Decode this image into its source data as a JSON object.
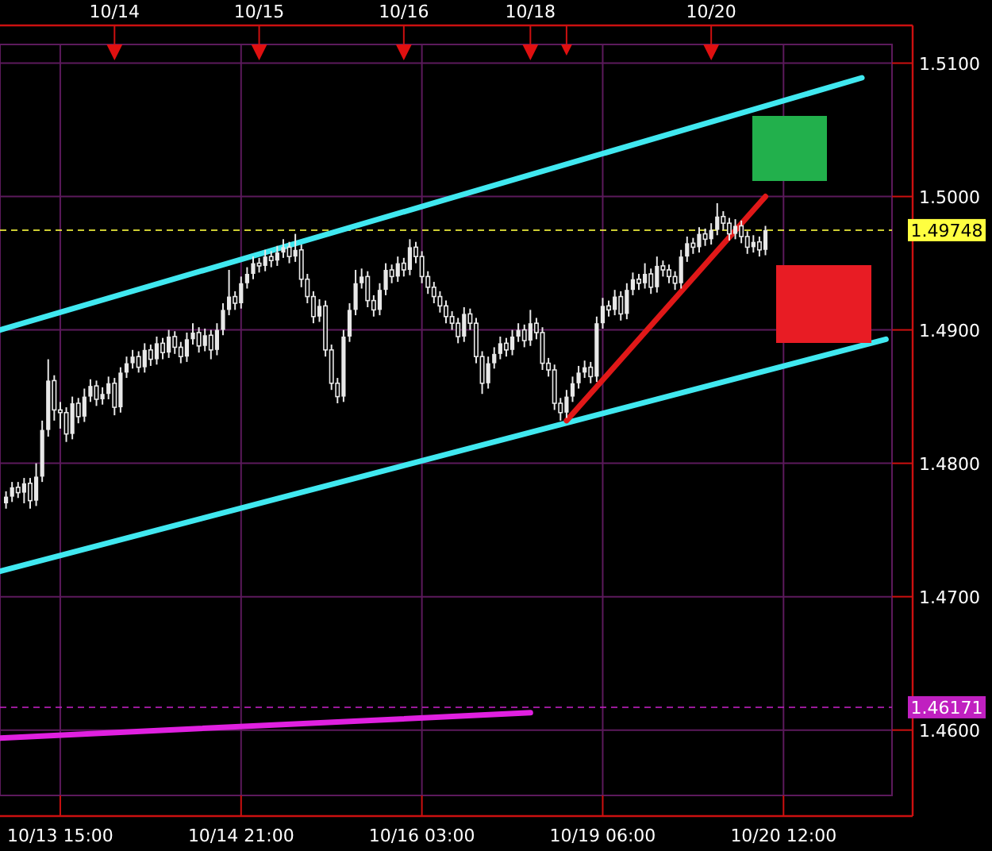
{
  "chart_data": {
    "type": "candlestick",
    "color": "#e8e8e8",
    "grid": true,
    "ylim": [
      1.4551,
      1.5114
    ],
    "yticks": [
      {
        "value": 1.46,
        "label": "1.4600"
      },
      {
        "value": 1.47,
        "label": "1.4700"
      },
      {
        "value": 1.48,
        "label": "1.4800"
      },
      {
        "value": 1.49,
        "label": "1.4900"
      },
      {
        "value": 1.5,
        "label": "1.5000"
      },
      {
        "value": 1.51,
        "label": "1.5100"
      }
    ],
    "annotations": [
      "10/14",
      "10/15",
      "10/16",
      "10/18",
      "10/20"
    ],
    "categories": [
      null,
      null,
      null,
      null,
      null,
      null,
      null,
      null,
      null,
      null,
      "10/13 15:00",
      null,
      null,
      null,
      null,
      null,
      null,
      null,
      null,
      null,
      null,
      null,
      null,
      null,
      null,
      null,
      null,
      null,
      null,
      null,
      null,
      null,
      null,
      null,
      null,
      null,
      null,
      null,
      null,
      null,
      "10/14 21:00",
      null,
      null,
      null,
      null,
      null,
      null,
      null,
      null,
      null,
      null,
      null,
      null,
      null,
      null,
      null,
      null,
      null,
      null,
      null,
      null,
      null,
      null,
      null,
      null,
      null,
      null,
      null,
      null,
      null,
      "10/16 03:00",
      null,
      null,
      null,
      null,
      null,
      null,
      null,
      null,
      null,
      null,
      null,
      null,
      null,
      null,
      null,
      null,
      null,
      null,
      null,
      null,
      null,
      null,
      null,
      null,
      null,
      null,
      null,
      null,
      null,
      "10/19 06:00",
      null,
      null,
      null,
      null,
      null,
      null,
      null,
      null,
      null,
      null,
      null,
      null,
      null,
      null,
      null,
      null,
      null,
      null,
      null,
      null,
      null,
      null,
      null,
      null,
      null,
      null,
      null,
      null,
      null,
      "10/20 12:00",
      null,
      null,
      null,
      null,
      null,
      null,
      null,
      null,
      null,
      null,
      null,
      null,
      null,
      null,
      null,
      null,
      null
    ],
    "ohlc": [
      null,
      [
        1.477,
        1.4779,
        1.4766,
        1.4775
      ],
      [
        1.4775,
        1.4786,
        1.4771,
        1.4782
      ],
      [
        1.4782,
        1.4786,
        1.4774,
        1.4778
      ],
      [
        1.4778,
        1.4789,
        1.477,
        1.4785
      ],
      [
        1.4785,
        1.4789,
        1.4766,
        1.4772
      ],
      [
        1.4772,
        1.48,
        1.4768,
        1.479
      ],
      [
        1.479,
        1.4832,
        1.4786,
        1.4825
      ],
      [
        1.4825,
        1.4878,
        1.482,
        1.4862
      ],
      [
        1.4862,
        1.4866,
        1.4832,
        1.484
      ],
      [
        1.484,
        1.4846,
        1.4826,
        1.4838
      ],
      [
        1.4838,
        1.4842,
        1.4816,
        1.4822
      ],
      [
        1.4822,
        1.485,
        1.4818,
        1.4845
      ],
      [
        1.4845,
        1.4849,
        1.483,
        1.4835
      ],
      [
        1.4835,
        1.4856,
        1.4831,
        1.485
      ],
      [
        1.485,
        1.4863,
        1.4846,
        1.4858
      ],
      [
        1.4858,
        1.4862,
        1.4843,
        1.4848
      ],
      [
        1.4848,
        1.4857,
        1.4844,
        1.4852
      ],
      [
        1.4852,
        1.4865,
        1.4848,
        1.486
      ],
      [
        1.486,
        1.4864,
        1.4836,
        1.4842
      ],
      [
        1.4842,
        1.4872,
        1.4838,
        1.4868
      ],
      [
        1.4868,
        1.488,
        1.4864,
        1.4875
      ],
      [
        1.4875,
        1.4885,
        1.4871,
        1.488
      ],
      [
        1.488,
        1.4884,
        1.4868,
        1.4872
      ],
      [
        1.4872,
        1.489,
        1.4868,
        1.4885
      ],
      [
        1.4885,
        1.4889,
        1.4873,
        1.4878
      ],
      [
        1.4878,
        1.4895,
        1.4874,
        1.489
      ],
      [
        1.489,
        1.4894,
        1.4878,
        1.4883
      ],
      [
        1.4883,
        1.49,
        1.4879,
        1.4895
      ],
      [
        1.4895,
        1.4899,
        1.4882,
        1.4887
      ],
      [
        1.4887,
        1.4891,
        1.4875,
        1.488
      ],
      [
        1.488,
        1.4898,
        1.4876,
        1.4893
      ],
      [
        1.4893,
        1.4905,
        1.4889,
        1.4898
      ],
      [
        1.4898,
        1.4902,
        1.4883,
        1.4888
      ],
      [
        1.4888,
        1.4901,
        1.4884,
        1.4896
      ],
      [
        1.4896,
        1.49,
        1.4878,
        1.4885
      ],
      [
        1.4885,
        1.4905,
        1.4881,
        1.49
      ],
      [
        1.49,
        1.492,
        1.4896,
        1.4915
      ],
      [
        1.4915,
        1.4945,
        1.4911,
        1.4925
      ],
      [
        1.4925,
        1.4929,
        1.4915,
        1.492
      ],
      [
        1.492,
        1.494,
        1.4916,
        1.4935
      ],
      [
        1.4935,
        1.4947,
        1.4931,
        1.4942
      ],
      [
        1.4942,
        1.4955,
        1.4938,
        1.495
      ],
      [
        1.495,
        1.4954,
        1.4943,
        1.4948
      ],
      [
        1.4948,
        1.496,
        1.4944,
        1.4955
      ],
      [
        1.4955,
        1.4959,
        1.4947,
        1.4952
      ],
      [
        1.4952,
        1.4963,
        1.4948,
        1.4958
      ],
      [
        1.4958,
        1.4968,
        1.4954,
        1.4962
      ],
      [
        1.4962,
        1.4966,
        1.495,
        1.4955
      ],
      [
        1.4955,
        1.4972,
        1.4951,
        1.496
      ],
      [
        1.496,
        1.4964,
        1.4932,
        1.4938
      ],
      [
        1.4938,
        1.4942,
        1.492,
        1.4925
      ],
      [
        1.4925,
        1.4929,
        1.4905,
        1.491
      ],
      [
        1.491,
        1.4923,
        1.4906,
        1.4918
      ],
      [
        1.4918,
        1.4922,
        1.488,
        1.4885
      ],
      [
        1.4885,
        1.4889,
        1.4855,
        1.486
      ],
      [
        1.486,
        1.4864,
        1.4845,
        1.485
      ],
      [
        1.485,
        1.49,
        1.4846,
        1.4895
      ],
      [
        1.4895,
        1.492,
        1.4891,
        1.4915
      ],
      [
        1.4915,
        1.4945,
        1.4911,
        1.4935
      ],
      [
        1.4935,
        1.4946,
        1.4931,
        1.494
      ],
      [
        1.494,
        1.4944,
        1.4917,
        1.4922
      ],
      [
        1.4922,
        1.4926,
        1.491,
        1.4915
      ],
      [
        1.4915,
        1.4935,
        1.4911,
        1.493
      ],
      [
        1.493,
        1.495,
        1.4926,
        1.4945
      ],
      [
        1.4945,
        1.4949,
        1.4935,
        1.494
      ],
      [
        1.494,
        1.4955,
        1.4936,
        1.495
      ],
      [
        1.495,
        1.4954,
        1.494,
        1.4945
      ],
      [
        1.4945,
        1.4968,
        1.4941,
        1.4962
      ],
      [
        1.4962,
        1.4966,
        1.495,
        1.4955
      ],
      [
        1.4955,
        1.4959,
        1.4935,
        1.494
      ],
      [
        1.494,
        1.4944,
        1.4927,
        1.4932
      ],
      [
        1.4932,
        1.4936,
        1.492,
        1.4925
      ],
      [
        1.4925,
        1.4929,
        1.4913,
        1.4918
      ],
      [
        1.4918,
        1.4922,
        1.4905,
        1.491
      ],
      [
        1.491,
        1.4914,
        1.49,
        1.4905
      ],
      [
        1.4905,
        1.4909,
        1.489,
        1.4895
      ],
      [
        1.4895,
        1.4917,
        1.4891,
        1.4912
      ],
      [
        1.4912,
        1.4916,
        1.49,
        1.4905
      ],
      [
        1.4905,
        1.4909,
        1.4875,
        1.488
      ],
      [
        1.488,
        1.4884,
        1.4852,
        1.486
      ],
      [
        1.486,
        1.488,
        1.4856,
        1.4875
      ],
      [
        1.4875,
        1.4887,
        1.4871,
        1.4882
      ],
      [
        1.4882,
        1.4895,
        1.4878,
        1.489
      ],
      [
        1.489,
        1.4894,
        1.488,
        1.4885
      ],
      [
        1.4885,
        1.49,
        1.4881,
        1.4895
      ],
      [
        1.4895,
        1.4905,
        1.4891,
        1.49
      ],
      [
        1.49,
        1.4904,
        1.4887,
        1.4892
      ],
      [
        1.4892,
        1.4915,
        1.4888,
        1.4905
      ],
      [
        1.4905,
        1.4909,
        1.4893,
        1.4898
      ],
      [
        1.4898,
        1.4902,
        1.487,
        1.4875
      ],
      [
        1.4875,
        1.4879,
        1.4865,
        1.487
      ],
      [
        1.487,
        1.4874,
        1.484,
        1.4845
      ],
      [
        1.4845,
        1.4849,
        1.4832,
        1.4838
      ],
      [
        1.4838,
        1.4855,
        1.4834,
        1.485
      ],
      [
        1.485,
        1.4865,
        1.4846,
        1.486
      ],
      [
        1.486,
        1.4873,
        1.4856,
        1.4868
      ],
      [
        1.4868,
        1.4877,
        1.4864,
        1.4872
      ],
      [
        1.4872,
        1.4876,
        1.486,
        1.4865
      ],
      [
        1.4865,
        1.491,
        1.4861,
        1.4905
      ],
      [
        1.4905,
        1.4924,
        1.4901,
        1.4918
      ],
      [
        1.4918,
        1.4922,
        1.491,
        1.4915
      ],
      [
        1.4915,
        1.493,
        1.4911,
        1.4925
      ],
      [
        1.4925,
        1.4929,
        1.4907,
        1.4912
      ],
      [
        1.4912,
        1.4935,
        1.4908,
        1.493
      ],
      [
        1.493,
        1.4943,
        1.4926,
        1.4938
      ],
      [
        1.4938,
        1.4942,
        1.493,
        1.4935
      ],
      [
        1.4935,
        1.495,
        1.4931,
        1.4942
      ],
      [
        1.4942,
        1.4946,
        1.4927,
        1.4932
      ],
      [
        1.4932,
        1.4955,
        1.4928,
        1.4948
      ],
      [
        1.4948,
        1.4952,
        1.494,
        1.4945
      ],
      [
        1.4945,
        1.4949,
        1.4935,
        1.494
      ],
      [
        1.494,
        1.4944,
        1.493,
        1.4935
      ],
      [
        1.4935,
        1.496,
        1.4931,
        1.4955
      ],
      [
        1.4955,
        1.497,
        1.4951,
        1.4965
      ],
      [
        1.4965,
        1.4969,
        1.4957,
        1.4962
      ],
      [
        1.4962,
        1.4977,
        1.4958,
        1.4972
      ],
      [
        1.4972,
        1.4976,
        1.4963,
        1.4968
      ],
      [
        1.4968,
        1.498,
        1.4964,
        1.4975
      ],
      [
        1.4975,
        1.4995,
        1.4971,
        1.4985
      ],
      [
        1.4985,
        1.4989,
        1.4975,
        1.498
      ],
      [
        1.498,
        1.4984,
        1.4967,
        1.4972
      ],
      [
        1.4972,
        1.4983,
        1.4968,
        1.4978
      ],
      [
        1.4978,
        1.4982,
        1.4965,
        1.497
      ],
      [
        1.497,
        1.4974,
        1.4957,
        1.4962
      ],
      [
        1.4962,
        1.4971,
        1.4958,
        1.4966
      ],
      [
        1.4966,
        1.497,
        1.4955,
        1.496
      ],
      [
        1.496,
        1.4978,
        1.4956,
        1.49748
      ],
      null,
      null,
      null,
      null,
      null,
      null,
      null,
      null,
      null,
      null,
      null,
      null,
      null,
      null,
      null,
      null,
      null,
      null,
      null,
      null
    ],
    "series": [
      {
        "type": "line",
        "color": "#40e8f0",
        "values": [
          1.49,
          null,
          null,
          null,
          null,
          null,
          null,
          null,
          null,
          null,
          null,
          null,
          null,
          null,
          null,
          null,
          null,
          null,
          null,
          null,
          null,
          null,
          null,
          null,
          null,
          null,
          null,
          null,
          null,
          null,
          null,
          null,
          null,
          null,
          null,
          null,
          null,
          null,
          null,
          null,
          null,
          null,
          null,
          null,
          null,
          null,
          null,
          null,
          null,
          null,
          null,
          null,
          null,
          null,
          null,
          null,
          null,
          null,
          null,
          null,
          null,
          null,
          null,
          null,
          null,
          null,
          null,
          null,
          null,
          null,
          null,
          null,
          null,
          null,
          null,
          null,
          null,
          null,
          null,
          null,
          null,
          null,
          null,
          null,
          null,
          null,
          null,
          null,
          null,
          null,
          null,
          null,
          null,
          null,
          null,
          null,
          null,
          null,
          null,
          null,
          null,
          null,
          null,
          null,
          null,
          null,
          null,
          null,
          null,
          null,
          null,
          null,
          null,
          null,
          null,
          null,
          null,
          null,
          null,
          null,
          null,
          null,
          null,
          null,
          null,
          null,
          null,
          null,
          null,
          null,
          null,
          null,
          null,
          null,
          null,
          null,
          null,
          null,
          null,
          null,
          null,
          null,
          null,
          1.5089,
          null,
          null,
          null,
          null
        ]
      },
      {
        "type": "line",
        "color": "#40e8f0",
        "values": [
          1.4719,
          null,
          null,
          null,
          null,
          null,
          null,
          null,
          null,
          null,
          null,
          null,
          null,
          null,
          null,
          null,
          null,
          null,
          null,
          null,
          null,
          null,
          null,
          null,
          null,
          null,
          null,
          null,
          null,
          null,
          null,
          null,
          null,
          null,
          null,
          null,
          null,
          null,
          null,
          null,
          null,
          null,
          null,
          null,
          null,
          null,
          null,
          null,
          null,
          null,
          null,
          null,
          null,
          null,
          null,
          null,
          null,
          null,
          null,
          null,
          null,
          null,
          null,
          null,
          null,
          null,
          null,
          null,
          null,
          null,
          null,
          null,
          null,
          null,
          null,
          null,
          null,
          null,
          null,
          null,
          null,
          null,
          null,
          null,
          null,
          null,
          null,
          null,
          null,
          null,
          null,
          null,
          null,
          null,
          null,
          null,
          null,
          null,
          null,
          null,
          null,
          null,
          null,
          null,
          null,
          null,
          null,
          null,
          null,
          null,
          null,
          null,
          null,
          null,
          null,
          null,
          null,
          null,
          null,
          null,
          null,
          null,
          null,
          null,
          null,
          null,
          null,
          null,
          null,
          null,
          null,
          null,
          null,
          null,
          null,
          null,
          null,
          null,
          null,
          null,
          null,
          null,
          null,
          null,
          null,
          null,
          null,
          1.4893
        ]
      },
      {
        "type": "line",
        "color": "#e01818",
        "values": [
          null,
          null,
          null,
          null,
          null,
          null,
          null,
          null,
          null,
          null,
          null,
          null,
          null,
          null,
          null,
          null,
          null,
          null,
          null,
          null,
          null,
          null,
          null,
          null,
          null,
          null,
          null,
          null,
          null,
          null,
          null,
          null,
          null,
          null,
          null,
          null,
          null,
          null,
          null,
          null,
          null,
          null,
          null,
          null,
          null,
          null,
          null,
          null,
          null,
          null,
          null,
          null,
          null,
          null,
          null,
          null,
          null,
          null,
          null,
          null,
          null,
          null,
          null,
          null,
          null,
          null,
          null,
          null,
          null,
          null,
          null,
          null,
          null,
          null,
          null,
          null,
          null,
          null,
          null,
          null,
          null,
          null,
          null,
          null,
          null,
          null,
          null,
          null,
          null,
          null,
          null,
          null,
          null,
          null,
          1.4832,
          null,
          null,
          null,
          null,
          null,
          null,
          null,
          null,
          null,
          null,
          null,
          null,
          null,
          null,
          null,
          null,
          null,
          null,
          null,
          null,
          null,
          null,
          null,
          null,
          null,
          null,
          null,
          null,
          null,
          null,
          null,
          null,
          1.5,
          null,
          null,
          null,
          null,
          null,
          null,
          null,
          null,
          null,
          null,
          null,
          null,
          null,
          null,
          null,
          null,
          null,
          null,
          null,
          null
        ]
      },
      {
        "type": "line",
        "color": "#e020e0",
        "values": [
          1.4594,
          null,
          null,
          null,
          null,
          null,
          null,
          null,
          null,
          null,
          null,
          null,
          null,
          null,
          null,
          null,
          null,
          null,
          null,
          null,
          null,
          null,
          null,
          null,
          null,
          null,
          null,
          null,
          null,
          null,
          null,
          null,
          null,
          null,
          null,
          null,
          null,
          null,
          null,
          null,
          null,
          null,
          null,
          null,
          null,
          null,
          null,
          null,
          null,
          null,
          null,
          null,
          null,
          null,
          null,
          null,
          null,
          null,
          null,
          null,
          null,
          null,
          null,
          null,
          null,
          null,
          null,
          null,
          null,
          null,
          null,
          null,
          null,
          null,
          null,
          null,
          null,
          null,
          null,
          null,
          null,
          null,
          null,
          null,
          null,
          null,
          null,
          null,
          1.4613,
          null,
          null,
          null,
          null,
          null,
          null,
          null,
          null,
          null,
          null,
          null,
          null,
          null,
          null,
          null,
          null,
          null,
          null,
          null,
          null,
          null,
          null,
          null,
          null,
          null,
          null,
          null,
          null,
          null,
          null,
          null,
          null,
          null,
          null,
          null,
          null,
          null,
          null,
          null,
          null,
          null,
          null,
          null,
          null,
          null,
          null,
          null,
          null,
          null,
          null,
          null,
          null,
          null,
          null,
          null,
          null,
          null,
          null,
          null
        ]
      }
    ],
    "ref_lines": [
      {
        "axis": "y",
        "value": 1.49748,
        "label": "1.49748",
        "color": "#ffff40",
        "line_style": "dashed"
      },
      {
        "axis": "y",
        "value": 1.46171,
        "label": "1.46171",
        "color": "#c020c0",
        "line_style": "dashed"
      }
    ]
  }
}
